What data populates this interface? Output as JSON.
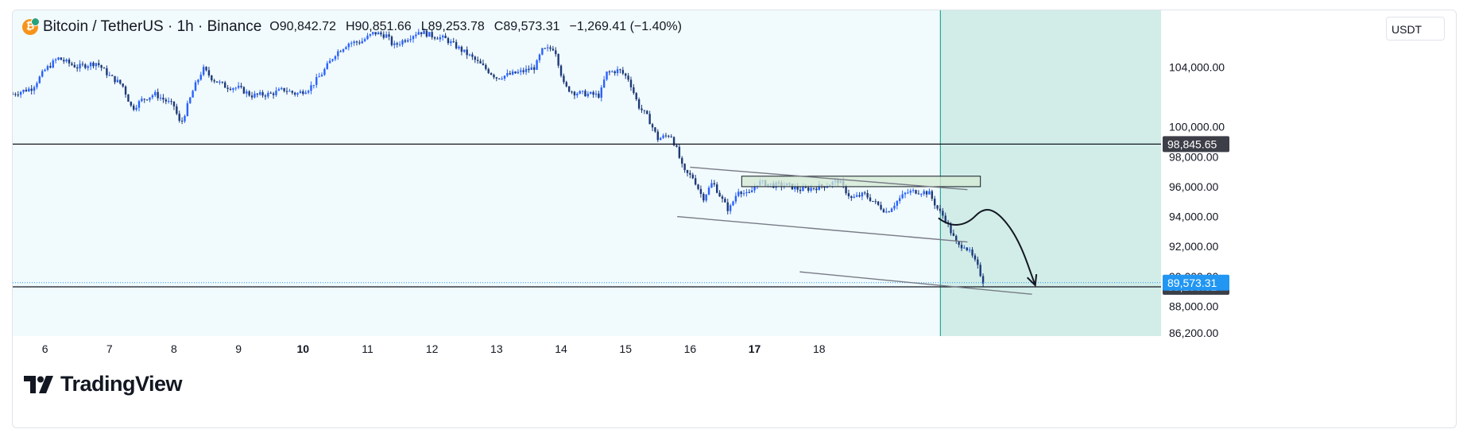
{
  "legend": {
    "symbol": "Bitcoin / TetherUS · 1h · Binance",
    "open_label": "O",
    "open": "90,842.72",
    "high_label": "H",
    "high": "90,851.66",
    "low_label": "L",
    "low": "89,253.78",
    "close_label": "C",
    "close": "89,573.31",
    "change": "−1,269.41 (−1.40%)"
  },
  "currency_select": "USDT",
  "logo_text": "TradingView",
  "colors": {
    "plot_bg": "#f1fafc",
    "projection_zone": "#d2ede8",
    "projection_line": "#26a69a",
    "candle_up": "#2962ff",
    "candle_down": "#1e3a78",
    "level_line": "#131722",
    "last_price": "#2196f3",
    "supply_zone_fill": "#d3ead3",
    "trend_lines": "#787b86"
  },
  "chart_data": {
    "type": "candlestick",
    "symbol": "BTCUSDT",
    "timeframe": "1h",
    "x_axis_ticks": [
      "6",
      "7",
      "8",
      "9",
      "10",
      "11",
      "12",
      "13",
      "14",
      "15",
      "16",
      "17",
      "18"
    ],
    "x_axis_bold": [
      "10",
      "17"
    ],
    "y_axis_ticks": [
      104000,
      100000,
      98000,
      96000,
      94000,
      92000,
      90000,
      88000,
      86200
    ],
    "y_axis_tick_labels": [
      "104,000.00",
      "100,000.00",
      "98,000.00",
      "96,000.00",
      "94,000.00",
      "92,000.00",
      "90,000.00",
      "88,000.00",
      "86,200.00"
    ],
    "ylim": [
      86000,
      107800
    ],
    "date_range_days": [
      5.5,
      23.3
    ],
    "price_path": [
      [
        5.5,
        102200
      ],
      [
        5.8,
        102600
      ],
      [
        6.0,
        103800
      ],
      [
        6.2,
        104600
      ],
      [
        6.5,
        104000
      ],
      [
        6.8,
        104300
      ],
      [
        7.0,
        103400
      ],
      [
        7.2,
        102800
      ],
      [
        7.35,
        101200
      ],
      [
        7.5,
        101800
      ],
      [
        7.7,
        102200
      ],
      [
        8.0,
        101400
      ],
      [
        8.1,
        100100
      ],
      [
        8.3,
        102500
      ],
      [
        8.45,
        103900
      ],
      [
        8.6,
        103200
      ],
      [
        8.8,
        102700
      ],
      [
        9.0,
        102600
      ],
      [
        9.2,
        102100
      ],
      [
        9.5,
        102200
      ],
      [
        9.7,
        102500
      ],
      [
        9.9,
        102200
      ],
      [
        10.1,
        102600
      ],
      [
        10.3,
        103600
      ],
      [
        10.5,
        104900
      ],
      [
        10.7,
        105600
      ],
      [
        10.9,
        105700
      ],
      [
        11.1,
        106300
      ],
      [
        11.3,
        106100
      ],
      [
        11.4,
        105400
      ],
      [
        11.6,
        105900
      ],
      [
        11.8,
        106400
      ],
      [
        12.0,
        106100
      ],
      [
        12.2,
        105900
      ],
      [
        12.4,
        105300
      ],
      [
        12.6,
        104700
      ],
      [
        12.8,
        104000
      ],
      [
        13.0,
        103300
      ],
      [
        13.2,
        103500
      ],
      [
        13.4,
        103700
      ],
      [
        13.6,
        104000
      ],
      [
        13.7,
        105100
      ],
      [
        13.9,
        105300
      ],
      [
        14.05,
        102700
      ],
      [
        14.2,
        102300
      ],
      [
        14.4,
        102200
      ],
      [
        14.6,
        102100
      ],
      [
        14.7,
        103600
      ],
      [
        14.9,
        103800
      ],
      [
        15.05,
        103200
      ],
      [
        15.2,
        101400
      ],
      [
        15.35,
        100600
      ],
      [
        15.5,
        99200
      ],
      [
        15.7,
        99500
      ],
      [
        15.8,
        98400
      ],
      [
        15.9,
        97000
      ],
      [
        16.05,
        96600
      ],
      [
        16.2,
        95200
      ],
      [
        16.35,
        96300
      ],
      [
        16.5,
        95100
      ],
      [
        16.6,
        94400
      ],
      [
        16.75,
        95800
      ],
      [
        16.9,
        95400
      ],
      [
        17.05,
        96300
      ],
      [
        17.3,
        96100
      ],
      [
        17.5,
        96100
      ],
      [
        17.7,
        95800
      ],
      [
        17.9,
        95900
      ],
      [
        18.1,
        96100
      ],
      [
        18.3,
        96400
      ],
      [
        18.5,
        95200
      ],
      [
        18.7,
        95500
      ],
      [
        18.9,
        94800
      ],
      [
        19.05,
        94300
      ],
      [
        19.2,
        95000
      ],
      [
        19.35,
        95600
      ],
      [
        19.5,
        95700
      ],
      [
        19.7,
        95600
      ],
      [
        19.85,
        94400
      ],
      [
        19.95,
        93900
      ],
      [
        20.05,
        92900
      ],
      [
        20.15,
        92000
      ],
      [
        20.25,
        92100
      ],
      [
        20.35,
        91500
      ],
      [
        20.45,
        90700
      ],
      [
        20.55,
        89573
      ]
    ],
    "horizontal_levels": [
      98845.65,
      89296.52
    ],
    "horizontal_level_labels": [
      "98,845.65",
      "89,296.52"
    ],
    "last_price": 89573.31,
    "last_price_label": "89,573.31",
    "projection_start_day": 19.88,
    "annotations": {
      "supply_zone": {
        "x": [
          16.8,
          20.5
        ],
        "y": [
          96000,
          96700
        ]
      },
      "channel_lines": [
        {
          "x": [
            16.0,
            20.3
          ],
          "y": [
            97300,
            95800
          ]
        },
        {
          "x": [
            15.8,
            20.3
          ],
          "y": [
            94000,
            92300
          ]
        },
        {
          "x": [
            17.7,
            21.3
          ],
          "y": [
            90300,
            88800
          ]
        }
      ],
      "projection_arrow": [
        [
          19.85,
          93900
        ],
        [
          20.0,
          93400
        ],
        [
          20.3,
          93500
        ],
        [
          20.55,
          94600
        ],
        [
          20.8,
          94200
        ],
        [
          21.1,
          92400
        ],
        [
          21.35,
          89400
        ]
      ]
    }
  }
}
